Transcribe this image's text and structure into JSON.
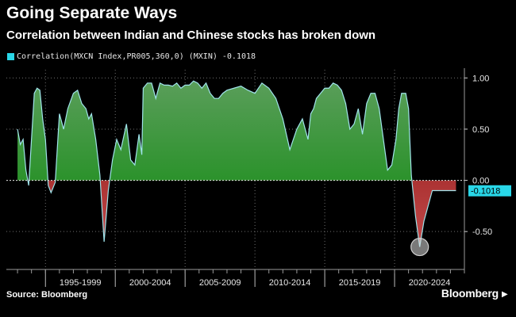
{
  "title": "Going Separate Ways",
  "subtitle": "Correlation between Indian and Chinese stocks has broken down",
  "legend_label": "Correlation(MXCN Index,PR005,360,0) (MXIN) -0.1018",
  "source": "Source: Bloomberg",
  "brand": "Bloomberg",
  "colors": {
    "background": "#000000",
    "positive_fill": "#0c8a0c",
    "negative_fill": "#8b1010",
    "line": "#9fe3ea",
    "last_value_tag": "#29d7e8"
  },
  "chart_data": {
    "type": "area",
    "title": "Going Separate Ways",
    "subtitle": "Correlation between Indian and Chinese stocks has broken down",
    "series": [
      {
        "name": "Correlation(MXCN Index,PR005,360,0) (MXIN)",
        "last_value": -0.1018,
        "last_value_label": "-0.1018",
        "x": [
          1993.0,
          1993.2,
          1993.4,
          1993.6,
          1993.8,
          1994.0,
          1994.2,
          1994.4,
          1994.6,
          1994.8,
          1995.0,
          1995.2,
          1995.4,
          1995.7,
          1996.0,
          1996.3,
          1996.6,
          1997.0,
          1997.3,
          1997.6,
          1997.9,
          1998.1,
          1998.3,
          1998.6,
          1998.9,
          1999.2,
          1999.5,
          1999.8,
          2000.1,
          2000.4,
          2000.8,
          2001.1,
          2001.4,
          2001.7,
          2001.9,
          2002.0,
          2002.3,
          2002.6,
          2002.9,
          2003.2,
          2003.5,
          2003.8,
          2004.1,
          2004.4,
          2004.7,
          2005.0,
          2005.3,
          2005.6,
          2005.9,
          2006.2,
          2006.5,
          2006.8,
          2007.1,
          2007.4,
          2007.7,
          2008.0,
          2008.5,
          2009.0,
          2009.5,
          2010.0,
          2010.5,
          2011.0,
          2011.5,
          2012.0,
          2012.5,
          2013.0,
          2013.4,
          2013.8,
          2014.0,
          2014.2,
          2014.4,
          2014.7,
          2015.0,
          2015.3,
          2015.6,
          2015.9,
          2016.2,
          2016.5,
          2016.8,
          2017.1,
          2017.4,
          2017.7,
          2018.0,
          2018.3,
          2018.6,
          2018.9,
          2019.2,
          2019.5,
          2019.8,
          2020.1,
          2020.3,
          2020.5,
          2020.8,
          2021.0,
          2021.2,
          2021.5,
          2021.8,
          2022.1,
          2022.4,
          2022.7,
          2022.9,
          2023.0,
          2023.2,
          2023.5,
          2023.8,
          2024.1,
          2024.4
        ],
        "values": [
          0.5,
          0.35,
          0.4,
          0.1,
          -0.05,
          0.4,
          0.85,
          0.9,
          0.88,
          0.6,
          0.4,
          -0.05,
          -0.12,
          -0.02,
          0.65,
          0.5,
          0.7,
          0.85,
          0.88,
          0.75,
          0.7,
          0.6,
          0.65,
          0.4,
          0.05,
          -0.6,
          -0.1,
          0.2,
          0.4,
          0.3,
          0.55,
          0.2,
          0.15,
          0.45,
          0.25,
          0.9,
          0.95,
          0.95,
          0.8,
          0.95,
          0.93,
          0.93,
          0.92,
          0.95,
          0.9,
          0.93,
          0.93,
          0.97,
          0.95,
          0.9,
          0.95,
          0.85,
          0.8,
          0.8,
          0.85,
          0.88,
          0.9,
          0.92,
          0.88,
          0.85,
          0.95,
          0.9,
          0.8,
          0.6,
          0.3,
          0.5,
          0.6,
          0.4,
          0.65,
          0.7,
          0.8,
          0.85,
          0.9,
          0.9,
          0.95,
          0.93,
          0.88,
          0.75,
          0.5,
          0.55,
          0.7,
          0.45,
          0.75,
          0.85,
          0.85,
          0.7,
          0.4,
          0.1,
          0.15,
          0.4,
          0.7,
          0.85,
          0.85,
          0.7,
          0.05,
          -0.35,
          -0.65,
          -0.4,
          -0.25,
          -0.1,
          -0.1,
          -0.1,
          -0.1,
          -0.1,
          -0.1,
          -0.1,
          -0.1
        ],
        "note_x_range": [
          1993.0,
          2024.5
        ]
      }
    ],
    "xlim": [
      1992.2,
      2025.0
    ],
    "ylim": [
      -0.87,
      1.08
    ],
    "yticks": [
      1.0,
      0.5,
      0.0,
      -0.5
    ],
    "ytick_labels": [
      "1.00",
      "0.50",
      "0.00",
      "-0.50"
    ],
    "xtick_labels": [
      "1995-1999",
      "2000-2004",
      "2005-2009",
      "2010-2014",
      "2015-2019",
      "2020-2024"
    ],
    "xtick_ranges": [
      [
        1995,
        2000
      ],
      [
        2000,
        2005
      ],
      [
        2005,
        2010
      ],
      [
        2010,
        2015
      ],
      [
        2015,
        2020
      ],
      [
        2020,
        2025
      ]
    ],
    "grid": true,
    "y_axis_side": "right",
    "legend_position": "top-left",
    "annotations": [
      "circle marking the recent low near -0.65"
    ]
  }
}
